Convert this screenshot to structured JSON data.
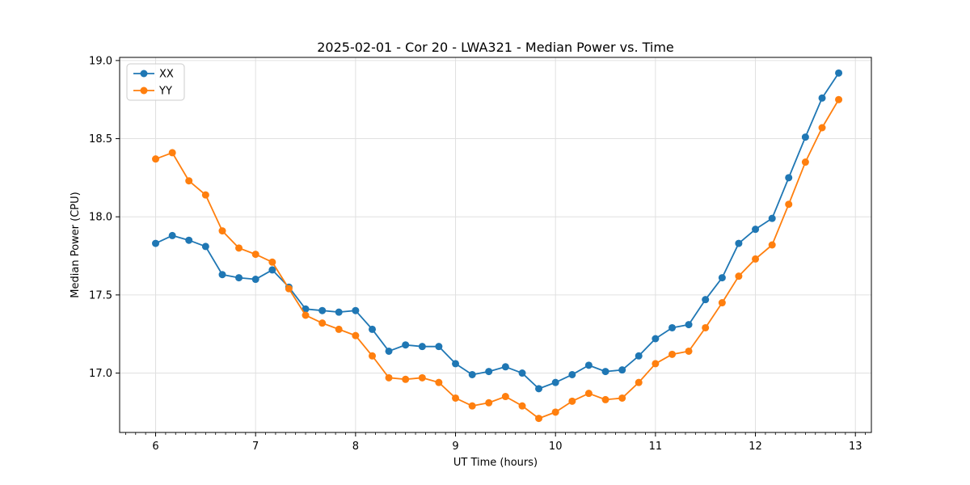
{
  "chart_data": {
    "type": "line",
    "title": "2025-02-01 - Cor 20 - LWA321 - Median Power vs. Time",
    "xlabel": "UT Time (hours)",
    "ylabel": "Median Power (CPU)",
    "xlim": [
      5.64,
      13.16
    ],
    "ylim": [
      16.62,
      19.02
    ],
    "xticks": {
      "values": [
        6,
        7,
        8,
        9,
        10,
        11,
        12,
        13
      ],
      "labels": [
        "6",
        "7",
        "8",
        "9",
        "10",
        "11",
        "12",
        "13"
      ]
    },
    "yticks": {
      "values": [
        17.0,
        17.5,
        18.0,
        18.5,
        19.0
      ],
      "labels": [
        "17.0",
        "17.5",
        "18.0",
        "18.5",
        "19.0"
      ]
    },
    "x_minor_tick_step": 0.1,
    "grid": "major",
    "legend_position": "upper left",
    "colors": {
      "xx": "#1f77b4",
      "yy": "#ff7f0e",
      "grid": "#e0e0e0",
      "spine": "#000000"
    },
    "x": [
      6.0,
      6.167,
      6.333,
      6.5,
      6.667,
      6.833,
      7.0,
      7.167,
      7.333,
      7.5,
      7.667,
      7.833,
      8.0,
      8.167,
      8.333,
      8.5,
      8.667,
      8.833,
      9.0,
      9.167,
      9.333,
      9.5,
      9.667,
      9.833,
      10.0,
      10.167,
      10.333,
      10.5,
      10.667,
      10.833,
      11.0,
      11.167,
      11.333,
      11.5,
      11.667,
      11.833,
      12.0,
      12.167,
      12.333,
      12.5,
      12.667,
      12.833
    ],
    "series": [
      {
        "name": "XX",
        "color": "#1f77b4",
        "values": [
          17.83,
          17.88,
          17.85,
          17.81,
          17.63,
          17.61,
          17.6,
          17.66,
          17.55,
          17.41,
          17.4,
          17.39,
          17.4,
          17.28,
          17.14,
          17.18,
          17.17,
          17.17,
          17.06,
          16.99,
          17.01,
          17.04,
          17.0,
          16.9,
          16.94,
          16.99,
          17.05,
          17.01,
          17.02,
          17.11,
          17.22,
          17.29,
          17.31,
          17.47,
          17.61,
          17.83,
          17.92,
          17.99,
          18.25,
          18.51,
          18.76,
          18.92
        ]
      },
      {
        "name": "YY",
        "color": "#ff7f0e",
        "values": [
          18.37,
          18.41,
          18.23,
          18.14,
          17.91,
          17.8,
          17.76,
          17.71,
          17.54,
          17.37,
          17.32,
          17.28,
          17.24,
          17.11,
          16.97,
          16.96,
          16.97,
          16.94,
          16.84,
          16.79,
          16.81,
          16.85,
          16.79,
          16.71,
          16.75,
          16.82,
          16.87,
          16.83,
          16.84,
          16.94,
          17.06,
          17.12,
          17.14,
          17.29,
          17.45,
          17.62,
          17.73,
          17.82,
          18.08,
          18.35,
          18.57,
          18.75
        ]
      }
    ]
  }
}
